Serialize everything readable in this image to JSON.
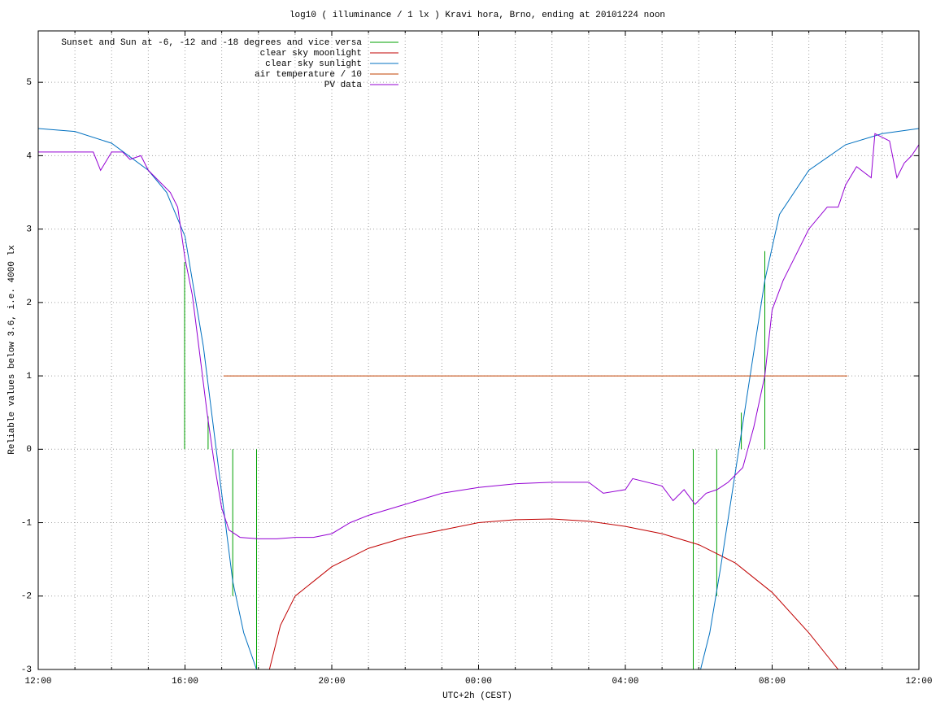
{
  "chart_data": {
    "type": "line",
    "title": "log10 ( illuminance / 1 lx ) Kravi hora, Brno, ending at 20101224 noon",
    "x_label": "UTC+2h (CEST)",
    "y_label": "Reliable values below 3.6, i.e. 4000 lx",
    "xlim": [
      0,
      24
    ],
    "ylim": [
      -3,
      5.7
    ],
    "xticks": [
      {
        "value": 0,
        "label": "12:00"
      },
      {
        "value": 4,
        "label": "16:00"
      },
      {
        "value": 8,
        "label": "20:00"
      },
      {
        "value": 12,
        "label": "00:00"
      },
      {
        "value": 16,
        "label": "04:00"
      },
      {
        "value": 20,
        "label": "08:00"
      },
      {
        "value": 24,
        "label": "12:00"
      }
    ],
    "xminorticks": [
      1,
      2,
      3,
      5,
      6,
      7,
      9,
      10,
      11,
      13,
      14,
      15,
      17,
      18,
      19,
      21,
      22,
      23
    ],
    "yticks": [
      -3,
      -2,
      -1,
      0,
      1,
      2,
      3,
      4,
      5
    ],
    "grid": true,
    "legend": "top-left",
    "series": [
      {
        "name": "Sunset and Sun at -6, -12 and -18 degrees and vice versa",
        "color": "#00a000",
        "x": [
          3.99,
          3.99,
          null,
          4.63,
          4.63,
          null,
          5.3,
          5.3,
          null,
          5.95,
          5.95,
          null,
          17.85,
          17.85,
          null,
          18.49,
          18.49,
          null,
          19.16,
          19.16,
          null,
          19.8,
          19.8
        ],
        "values": [
          0,
          2.55,
          null,
          0,
          0.45,
          null,
          0,
          -2,
          null,
          0,
          -3,
          null,
          0,
          -3,
          null,
          0,
          -2,
          null,
          0,
          0.5,
          null,
          0,
          2.7
        ]
      },
      {
        "name": "clear sky moonlight",
        "color": "#c00000",
        "x": [
          6.3,
          6.6,
          7,
          8,
          9,
          10,
          11,
          12,
          13,
          14,
          15,
          16,
          17,
          18,
          19,
          20,
          21,
          21.8
        ],
        "values": [
          -3,
          -2.4,
          -2.0,
          -1.6,
          -1.35,
          -1.2,
          -1.1,
          -1.0,
          -0.96,
          -0.95,
          -0.98,
          -1.05,
          -1.15,
          -1.3,
          -1.55,
          -1.95,
          -2.5,
          -3
        ]
      },
      {
        "name": "clear sky sunlight",
        "color": "#0070c0",
        "x": [
          0,
          1,
          2,
          3,
          3.5,
          4,
          4.5,
          5,
          5.3,
          5.6,
          5.95,
          null,
          18.05,
          18.3,
          18.6,
          19,
          19.4,
          19.8,
          20.2,
          21,
          22,
          23,
          24
        ],
        "values": [
          4.37,
          4.33,
          4.17,
          3.8,
          3.5,
          2.9,
          1.4,
          -0.6,
          -1.8,
          -2.5,
          -3,
          null,
          -3,
          -2.5,
          -1.6,
          -0.3,
          1.0,
          2.3,
          3.2,
          3.8,
          4.15,
          4.3,
          4.37
        ]
      },
      {
        "name": "air temperature / 10",
        "color": "#c04000",
        "x": [
          5.05,
          22.05
        ],
        "values": [
          1,
          1
        ]
      },
      {
        "name": "PV data",
        "color": "#9400d3",
        "x": [
          0,
          0.5,
          1,
          1.5,
          1.7,
          2,
          2.3,
          2.5,
          2.8,
          3,
          3.3,
          3.6,
          3.8,
          4.0,
          4.2,
          4.4,
          4.6,
          4.8,
          5.0,
          5.2,
          5.5,
          6,
          6.5,
          7,
          7.5,
          8,
          8.5,
          9,
          10,
          11,
          12,
          13,
          14,
          15,
          15.4,
          16,
          16.2,
          17,
          17.3,
          17.6,
          17.9,
          18.2,
          18.5,
          18.8,
          19.2,
          19.5,
          19.8,
          20,
          20.3,
          20.6,
          21,
          21.5,
          21.8,
          22,
          22.3,
          22.7,
          22.8,
          23.2,
          23.4,
          23.6,
          23.8,
          24
        ],
        "values": [
          4.05,
          4.05,
          4.05,
          4.05,
          3.8,
          4.05,
          4.05,
          3.95,
          4.0,
          3.8,
          3.65,
          3.5,
          3.3,
          2.6,
          2.1,
          1.3,
          0.5,
          -0.2,
          -0.8,
          -1.1,
          -1.2,
          -1.22,
          -1.22,
          -1.2,
          -1.2,
          -1.15,
          -1.0,
          -0.9,
          -0.75,
          -0.6,
          -0.52,
          -0.47,
          -0.45,
          -0.45,
          -0.6,
          -0.55,
          -0.4,
          -0.5,
          -0.7,
          -0.55,
          -0.75,
          -0.6,
          -0.55,
          -0.45,
          -0.25,
          0.3,
          1.0,
          1.9,
          2.3,
          2.6,
          3.0,
          3.3,
          3.3,
          3.6,
          3.85,
          3.7,
          4.3,
          4.2,
          3.7,
          3.9,
          4.0,
          4.15
        ]
      }
    ]
  }
}
